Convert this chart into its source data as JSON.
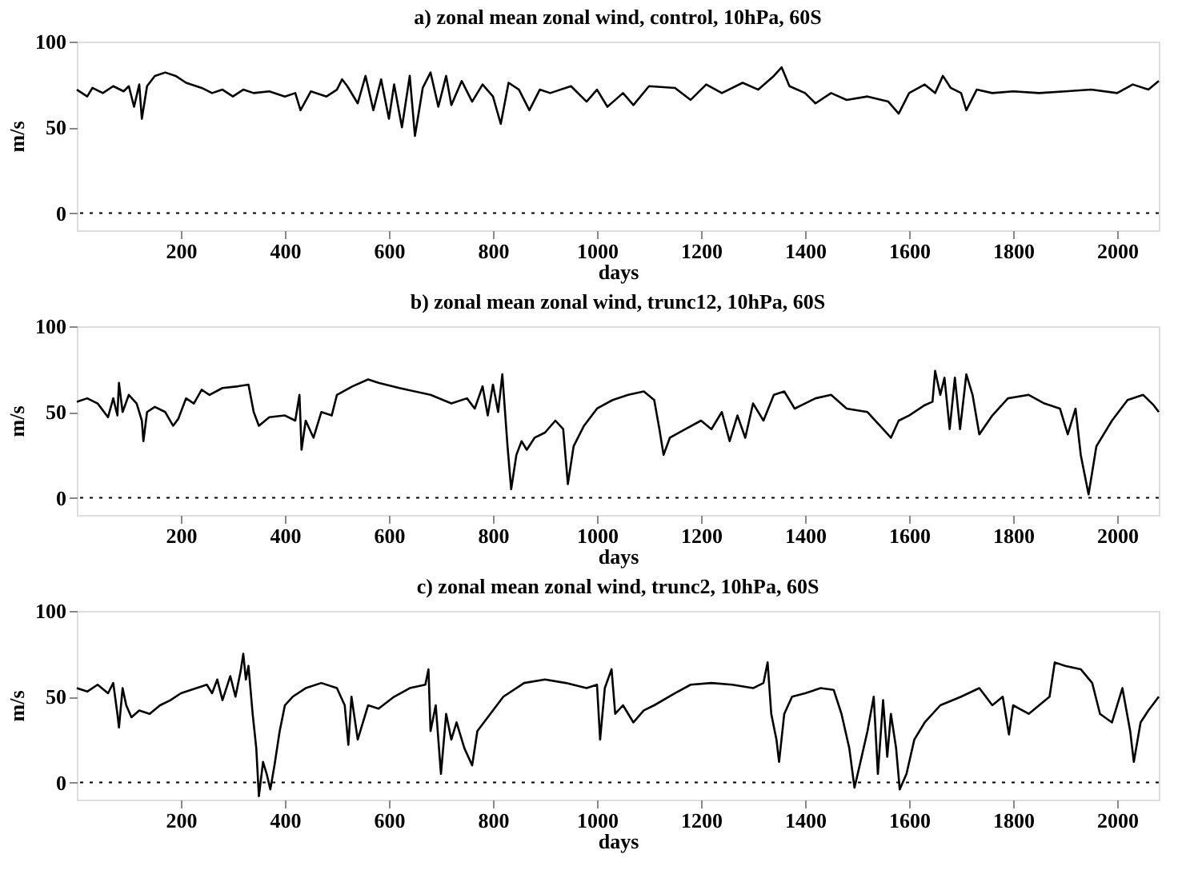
{
  "chart_data": [
    {
      "type": "line",
      "title": "a) zonal mean zonal wind, control, 10hPa, 60S",
      "xlabel": "days",
      "ylabel": "m/s",
      "color": "#000000",
      "grid": false,
      "line_style": "solid",
      "xlim": [
        0,
        2080
      ],
      "ylim": [
        -10,
        100
      ],
      "xticks": [
        200,
        400,
        600,
        800,
        1000,
        1200,
        1400,
        1600,
        1800,
        2000
      ],
      "yticks": [
        0,
        50,
        100
      ],
      "ref_lines": [
        {
          "axis": "y",
          "value": 0,
          "line_style": "dotted",
          "color": "#000000"
        }
      ],
      "x": [
        0,
        20,
        30,
        50,
        70,
        90,
        100,
        110,
        120,
        125,
        135,
        150,
        170,
        190,
        210,
        240,
        260,
        280,
        300,
        320,
        340,
        370,
        400,
        420,
        430,
        450,
        480,
        500,
        510,
        520,
        540,
        555,
        570,
        585,
        600,
        610,
        625,
        640,
        650,
        665,
        680,
        695,
        710,
        720,
        740,
        760,
        780,
        800,
        815,
        830,
        850,
        870,
        890,
        910,
        950,
        980,
        1000,
        1020,
        1050,
        1070,
        1100,
        1150,
        1180,
        1210,
        1240,
        1280,
        1310,
        1340,
        1355,
        1370,
        1400,
        1420,
        1450,
        1480,
        1520,
        1560,
        1580,
        1600,
        1630,
        1650,
        1665,
        1680,
        1700,
        1710,
        1730,
        1760,
        1800,
        1850,
        1900,
        1950,
        2000,
        2030,
        2060,
        2080
      ],
      "values": [
        72,
        68,
        73,
        70,
        74,
        71,
        74,
        62,
        75,
        55,
        74,
        80,
        82,
        80,
        76,
        73,
        70,
        72,
        68,
        72,
        70,
        71,
        68,
        70,
        60,
        71,
        68,
        72,
        78,
        74,
        64,
        80,
        60,
        78,
        55,
        75,
        50,
        80,
        45,
        73,
        82,
        62,
        80,
        63,
        77,
        65,
        75,
        68,
        52,
        76,
        72,
        60,
        72,
        70,
        74,
        65,
        72,
        62,
        70,
        63,
        74,
        73,
        66,
        75,
        70,
        76,
        72,
        80,
        85,
        74,
        70,
        64,
        70,
        66,
        68,
        65,
        58,
        70,
        75,
        70,
        80,
        73,
        70,
        60,
        72,
        70,
        71,
        70,
        71,
        72,
        70,
        75,
        72,
        77
      ]
    },
    {
      "type": "line",
      "title": "b) zonal mean zonal wind, trunc12, 10hPa, 60S",
      "xlabel": "days",
      "ylabel": "m/s",
      "color": "#000000",
      "grid": false,
      "line_style": "solid",
      "xlim": [
        0,
        2080
      ],
      "ylim": [
        -10,
        100
      ],
      "xticks": [
        200,
        400,
        600,
        800,
        1000,
        1200,
        1400,
        1600,
        1800,
        2000
      ],
      "yticks": [
        0,
        50,
        100
      ],
      "ref_lines": [
        {
          "axis": "y",
          "value": 0,
          "line_style": "dotted",
          "color": "#000000"
        }
      ],
      "x": [
        0,
        20,
        40,
        60,
        70,
        78,
        81,
        88,
        100,
        115,
        125,
        128,
        135,
        150,
        170,
        185,
        195,
        210,
        225,
        240,
        255,
        280,
        310,
        330,
        340,
        350,
        370,
        400,
        420,
        428,
        432,
        440,
        455,
        470,
        490,
        500,
        530,
        560,
        580,
        620,
        680,
        720,
        750,
        765,
        780,
        790,
        800,
        810,
        818,
        828,
        835,
        845,
        855,
        865,
        880,
        900,
        920,
        935,
        944,
        955,
        975,
        1000,
        1030,
        1060,
        1090,
        1110,
        1120,
        1128,
        1140,
        1170,
        1200,
        1220,
        1240,
        1255,
        1270,
        1285,
        1300,
        1320,
        1340,
        1360,
        1380,
        1420,
        1450,
        1480,
        1520,
        1550,
        1565,
        1580,
        1600,
        1630,
        1645,
        1650,
        1660,
        1668,
        1678,
        1688,
        1698,
        1710,
        1722,
        1735,
        1760,
        1790,
        1830,
        1860,
        1890,
        1905,
        1920,
        1930,
        1945,
        1960,
        1990,
        2020,
        2050,
        2070,
        2080
      ],
      "values": [
        56,
        58,
        55,
        47,
        58,
        48,
        67,
        50,
        60,
        55,
        45,
        33,
        50,
        53,
        50,
        42,
        46,
        58,
        55,
        63,
        60,
        64,
        65,
        66,
        50,
        42,
        47,
        48,
        45,
        60,
        28,
        45,
        35,
        50,
        48,
        60,
        65,
        69,
        67,
        64,
        60,
        55,
        58,
        52,
        65,
        48,
        66,
        50,
        72,
        30,
        5,
        25,
        33,
        28,
        35,
        38,
        45,
        40,
        8,
        30,
        42,
        52,
        57,
        60,
        62,
        57,
        40,
        25,
        35,
        40,
        45,
        40,
        50,
        33,
        48,
        35,
        55,
        45,
        60,
        62,
        52,
        58,
        60,
        52,
        50,
        40,
        35,
        45,
        48,
        54,
        56,
        74,
        60,
        70,
        40,
        70,
        40,
        72,
        60,
        37,
        48,
        58,
        60,
        55,
        52,
        37,
        52,
        25,
        2,
        30,
        45,
        57,
        60,
        54,
        50
      ]
    },
    {
      "type": "line",
      "title": "c) zonal mean zonal wind, trunc2, 10hPa, 60S",
      "xlabel": "days",
      "ylabel": "m/s",
      "color": "#000000",
      "grid": false,
      "line_style": "solid",
      "xlim": [
        0,
        2080
      ],
      "ylim": [
        -10,
        100
      ],
      "xticks": [
        200,
        400,
        600,
        800,
        1000,
        1200,
        1400,
        1600,
        1800,
        2000
      ],
      "yticks": [
        0,
        50,
        100
      ],
      "ref_lines": [
        {
          "axis": "y",
          "value": 0,
          "line_style": "dotted",
          "color": "#000000"
        }
      ],
      "x": [
        0,
        20,
        40,
        60,
        70,
        78,
        81,
        88,
        95,
        105,
        120,
        140,
        160,
        180,
        200,
        230,
        250,
        260,
        270,
        280,
        295,
        305,
        315,
        320,
        325,
        330,
        338,
        345,
        350,
        358,
        365,
        372,
        380,
        390,
        400,
        415,
        440,
        470,
        500,
        515,
        522,
        528,
        540,
        560,
        580,
        610,
        640,
        670,
        676,
        680,
        690,
        700,
        710,
        720,
        730,
        745,
        760,
        770,
        790,
        820,
        860,
        900,
        940,
        980,
        1000,
        1006,
        1015,
        1028,
        1035,
        1050,
        1070,
        1090,
        1110,
        1150,
        1180,
        1220,
        1260,
        1300,
        1320,
        1328,
        1335,
        1345,
        1350,
        1360,
        1375,
        1400,
        1430,
        1455,
        1470,
        1485,
        1495,
        1505,
        1520,
        1532,
        1540,
        1550,
        1558,
        1565,
        1575,
        1582,
        1595,
        1610,
        1630,
        1660,
        1700,
        1735,
        1760,
        1780,
        1792,
        1800,
        1830,
        1850,
        1870,
        1880,
        1900,
        1930,
        1952,
        1967,
        1990,
        2010,
        2025,
        2032,
        2045,
        2060,
        2080
      ],
      "values": [
        55,
        53,
        57,
        52,
        58,
        40,
        32,
        55,
        45,
        38,
        42,
        40,
        45,
        48,
        52,
        55,
        57,
        52,
        60,
        48,
        62,
        50,
        65,
        75,
        60,
        68,
        40,
        20,
        -8,
        12,
        5,
        -4,
        10,
        30,
        45,
        50,
        55,
        58,
        55,
        45,
        22,
        50,
        25,
        45,
        43,
        50,
        55,
        57,
        66,
        30,
        45,
        5,
        40,
        25,
        35,
        20,
        10,
        30,
        38,
        50,
        58,
        60,
        58,
        55,
        57,
        25,
        55,
        66,
        40,
        45,
        35,
        42,
        45,
        52,
        57,
        58,
        57,
        55,
        58,
        70,
        40,
        25,
        12,
        40,
        50,
        52,
        55,
        54,
        40,
        20,
        -3,
        10,
        30,
        50,
        5,
        48,
        15,
        40,
        20,
        -4,
        5,
        25,
        35,
        45,
        50,
        55,
        45,
        50,
        28,
        45,
        40,
        45,
        50,
        70,
        68,
        66,
        58,
        40,
        35,
        55,
        30,
        12,
        35,
        42,
        50
      ]
    }
  ]
}
